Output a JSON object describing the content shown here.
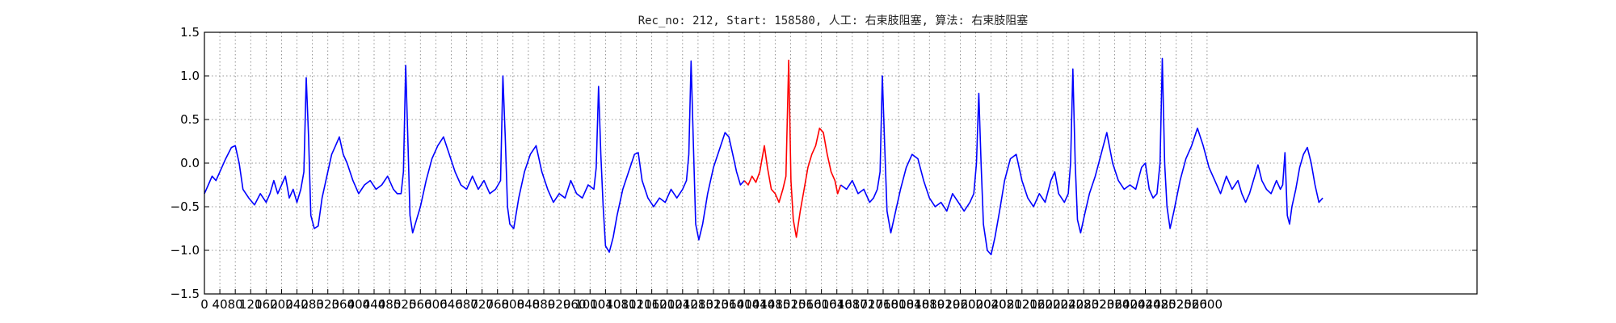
{
  "chart_data": {
    "type": "line",
    "title": "Rec_no: 212, Start: 158580, 人工: 右束肢阻塞, 算法: 右束肢阻塞",
    "xlabel": "",
    "ylabel": "",
    "xlim": [
      0,
      2900
    ],
    "ylim": [
      -1.5,
      1.5
    ],
    "grid": true,
    "y_ticks": [
      "1.5",
      "1.0",
      "0.5",
      "0.0",
      "−0.5",
      "−1.0",
      "−1.5"
    ],
    "y_tick_values": [
      1.5,
      1.0,
      0.5,
      0.0,
      -0.5,
      -1.0,
      -1.5
    ],
    "x_tick_values": [
      0,
      40,
      80,
      120,
      160,
      200,
      240,
      280,
      320,
      360,
      400,
      440,
      480,
      520,
      560,
      600,
      640,
      680,
      720,
      760,
      800,
      840,
      880,
      920,
      960,
      1000,
      1040,
      1080,
      1120,
      1160,
      1200,
      1240,
      1280,
      1320,
      1360,
      1400,
      1440,
      1480,
      1520,
      1560,
      1600,
      1640,
      1680,
      1720,
      1760,
      1800,
      1840,
      1880,
      1920,
      1960,
      2000,
      2040,
      2080,
      2120,
      2160,
      2200,
      2240,
      2280,
      2320,
      2360,
      2400,
      2440,
      2480,
      2520,
      2560,
      2600
    ],
    "x_tick_labels": [
      "0",
      "40",
      "80",
      "120",
      "160",
      "200",
      "240",
      "280",
      "320",
      "360",
      "400",
      "440",
      "480",
      "520",
      "560",
      "600",
      "640",
      "680",
      "720",
      "760",
      "800",
      "840",
      "880",
      "920",
      "960",
      "1000",
      "1040",
      "1080",
      "1120",
      "1160",
      "1200",
      "1240",
      "1280",
      "1320",
      "1360",
      "1400",
      "1440",
      "1480",
      "1520",
      "1560",
      "1600",
      "1640",
      "1680",
      "1720",
      "1760",
      "1800",
      "1840",
      "1880",
      "1920",
      "1960",
      "2000",
      "2040",
      "2080",
      "2120",
      "2160",
      "2200",
      "2240",
      "2280",
      "2320",
      "2360",
      "2400",
      "2440",
      "2480",
      "2520",
      "2560",
      "2600"
    ],
    "series": [
      {
        "color": "#0000ff",
        "points": [
          [
            0,
            -0.35
          ],
          [
            10,
            -0.25
          ],
          [
            20,
            -0.15
          ],
          [
            30,
            -0.2
          ],
          [
            40,
            -0.1
          ],
          [
            55,
            0.05
          ],
          [
            70,
            0.18
          ],
          [
            80,
            0.2
          ],
          [
            90,
            0.0
          ],
          [
            100,
            -0.3
          ],
          [
            115,
            -0.4
          ],
          [
            130,
            -0.48
          ],
          [
            145,
            -0.35
          ],
          [
            160,
            -0.45
          ],
          [
            170,
            -0.35
          ],
          [
            180,
            -0.2
          ],
          [
            190,
            -0.35
          ],
          [
            200,
            -0.25
          ],
          [
            210,
            -0.15
          ],
          [
            220,
            -0.4
          ],
          [
            230,
            -0.3
          ],
          [
            240,
            -0.45
          ],
          [
            250,
            -0.3
          ],
          [
            258,
            -0.1
          ],
          [
            264,
            0.98
          ],
          [
            270,
            0.3
          ],
          [
            276,
            -0.6
          ],
          [
            285,
            -0.75
          ],
          [
            295,
            -0.72
          ],
          [
            305,
            -0.4
          ],
          [
            320,
            -0.1
          ],
          [
            330,
            0.1
          ],
          [
            340,
            0.2
          ],
          [
            350,
            0.3
          ],
          [
            360,
            0.1
          ],
          [
            370,
            0.0
          ],
          [
            385,
            -0.2
          ],
          [
            400,
            -0.35
          ],
          [
            415,
            -0.25
          ],
          [
            430,
            -0.2
          ],
          [
            445,
            -0.3
          ],
          [
            460,
            -0.25
          ],
          [
            475,
            -0.15
          ],
          [
            490,
            -0.3
          ],
          [
            500,
            -0.35
          ],
          [
            510,
            -0.35
          ],
          [
            516,
            -0.1
          ],
          [
            522,
            1.12
          ],
          [
            528,
            0.2
          ],
          [
            533,
            -0.6
          ],
          [
            540,
            -0.8
          ],
          [
            550,
            -0.65
          ],
          [
            560,
            -0.5
          ],
          [
            575,
            -0.2
          ],
          [
            590,
            0.05
          ],
          [
            605,
            0.2
          ],
          [
            620,
            0.3
          ],
          [
            635,
            0.1
          ],
          [
            650,
            -0.1
          ],
          [
            665,
            -0.25
          ],
          [
            680,
            -0.3
          ],
          [
            695,
            -0.15
          ],
          [
            710,
            -0.3
          ],
          [
            725,
            -0.2
          ],
          [
            740,
            -0.35
          ],
          [
            755,
            -0.3
          ],
          [
            768,
            -0.2
          ],
          [
            774,
            1.0
          ],
          [
            780,
            0.3
          ],
          [
            786,
            -0.5
          ],
          [
            792,
            -0.7
          ],
          [
            802,
            -0.75
          ],
          [
            815,
            -0.4
          ],
          [
            830,
            -0.1
          ],
          [
            845,
            0.1
          ],
          [
            860,
            0.2
          ],
          [
            875,
            -0.1
          ],
          [
            890,
            -0.3
          ],
          [
            905,
            -0.45
          ],
          [
            920,
            -0.35
          ],
          [
            935,
            -0.4
          ],
          [
            950,
            -0.2
          ],
          [
            965,
            -0.35
          ],
          [
            980,
            -0.4
          ],
          [
            995,
            -0.25
          ],
          [
            1010,
            -0.3
          ],
          [
            1016,
            -0.05
          ],
          [
            1022,
            0.88
          ],
          [
            1028,
            0.1
          ],
          [
            1034,
            -0.5
          ],
          [
            1040,
            -0.95
          ],
          [
            1050,
            -1.02
          ],
          [
            1060,
            -0.85
          ],
          [
            1070,
            -0.6
          ],
          [
            1085,
            -0.3
          ],
          [
            1100,
            -0.1
          ],
          [
            1115,
            0.1
          ],
          [
            1125,
            0.12
          ],
          [
            1135,
            -0.2
          ],
          [
            1150,
            -0.4
          ],
          [
            1165,
            -0.5
          ],
          [
            1180,
            -0.4
          ],
          [
            1195,
            -0.45
          ],
          [
            1210,
            -0.3
          ],
          [
            1225,
            -0.4
          ],
          [
            1240,
            -0.3
          ],
          [
            1250,
            -0.2
          ],
          [
            1256,
            0.1
          ],
          [
            1262,
            1.17
          ],
          [
            1268,
            0.2
          ],
          [
            1274,
            -0.7
          ],
          [
            1282,
            -0.88
          ],
          [
            1292,
            -0.7
          ],
          [
            1305,
            -0.35
          ],
          [
            1320,
            -0.05
          ],
          [
            1335,
            0.15
          ],
          [
            1350,
            0.35
          ],
          [
            1360,
            0.3
          ],
          [
            1370,
            0.1
          ],
          [
            1380,
            -0.1
          ],
          [
            1390,
            -0.25
          ],
          [
            1400,
            -0.2
          ]
        ]
      },
      {
        "color": "#ff0000",
        "points": [
          [
            1400,
            -0.2
          ],
          [
            1410,
            -0.25
          ],
          [
            1420,
            -0.15
          ],
          [
            1430,
            -0.22
          ],
          [
            1440,
            -0.1
          ],
          [
            1452,
            0.2
          ],
          [
            1460,
            -0.05
          ],
          [
            1470,
            -0.3
          ],
          [
            1480,
            -0.35
          ],
          [
            1490,
            -0.45
          ],
          [
            1500,
            -0.3
          ],
          [
            1508,
            -0.15
          ],
          [
            1515,
            1.18
          ],
          [
            1521,
            -0.2
          ],
          [
            1527,
            -0.65
          ],
          [
            1535,
            -0.85
          ],
          [
            1545,
            -0.55
          ],
          [
            1555,
            -0.3
          ],
          [
            1565,
            -0.05
          ],
          [
            1575,
            0.1
          ],
          [
            1585,
            0.2
          ],
          [
            1595,
            0.4
          ],
          [
            1605,
            0.35
          ],
          [
            1615,
            0.1
          ],
          [
            1625,
            -0.1
          ],
          [
            1635,
            -0.2
          ],
          [
            1642,
            -0.35
          ],
          [
            1650,
            -0.25
          ]
        ]
      },
      {
        "color": "#0000ff",
        "points": [
          [
            1650,
            -0.25
          ],
          [
            1665,
            -0.3
          ],
          [
            1680,
            -0.2
          ],
          [
            1695,
            -0.35
          ],
          [
            1710,
            -0.3
          ],
          [
            1725,
            -0.45
          ],
          [
            1735,
            -0.4
          ],
          [
            1745,
            -0.3
          ],
          [
            1752,
            -0.1
          ],
          [
            1758,
            1.0
          ],
          [
            1764,
            0.2
          ],
          [
            1770,
            -0.55
          ],
          [
            1780,
            -0.8
          ],
          [
            1790,
            -0.6
          ],
          [
            1805,
            -0.3
          ],
          [
            1820,
            -0.05
          ],
          [
            1835,
            0.1
          ],
          [
            1850,
            0.05
          ],
          [
            1865,
            -0.2
          ],
          [
            1880,
            -0.4
          ],
          [
            1895,
            -0.5
          ],
          [
            1910,
            -0.45
          ],
          [
            1925,
            -0.55
          ],
          [
            1940,
            -0.35
          ],
          [
            1955,
            -0.45
          ],
          [
            1970,
            -0.55
          ],
          [
            1985,
            -0.45
          ],
          [
            1995,
            -0.35
          ],
          [
            2002,
            0.0
          ],
          [
            2008,
            0.8
          ],
          [
            2014,
            0.0
          ],
          [
            2020,
            -0.7
          ],
          [
            2030,
            -1.0
          ],
          [
            2040,
            -1.05
          ],
          [
            2050,
            -0.85
          ],
          [
            2062,
            -0.55
          ],
          [
            2075,
            -0.2
          ],
          [
            2090,
            0.05
          ],
          [
            2105,
            0.1
          ],
          [
            2120,
            -0.2
          ],
          [
            2135,
            -0.4
          ],
          [
            2150,
            -0.5
          ],
          [
            2165,
            -0.35
          ],
          [
            2180,
            -0.45
          ],
          [
            2195,
            -0.2
          ],
          [
            2205,
            -0.1
          ],
          [
            2215,
            -0.35
          ],
          [
            2230,
            -0.45
          ],
          [
            2240,
            -0.35
          ],
          [
            2246,
            0.0
          ],
          [
            2252,
            1.08
          ],
          [
            2258,
            0.0
          ],
          [
            2264,
            -0.65
          ],
          [
            2272,
            -0.8
          ],
          [
            2282,
            -0.6
          ],
          [
            2295,
            -0.35
          ],
          [
            2310,
            -0.15
          ],
          [
            2325,
            0.1
          ],
          [
            2340,
            0.35
          ],
          [
            2355,
            0.0
          ],
          [
            2370,
            -0.2
          ],
          [
            2385,
            -0.3
          ],
          [
            2400,
            -0.25
          ],
          [
            2415,
            -0.3
          ],
          [
            2430,
            -0.05
          ],
          [
            2440,
            0.0
          ],
          [
            2450,
            -0.3
          ],
          [
            2460,
            -0.4
          ],
          [
            2470,
            -0.35
          ],
          [
            2478,
            0.0
          ],
          [
            2484,
            1.2
          ],
          [
            2490,
            0.0
          ],
          [
            2496,
            -0.5
          ],
          [
            2504,
            -0.75
          ],
          [
            2514,
            -0.55
          ],
          [
            2530,
            -0.2
          ],
          [
            2545,
            0.05
          ],
          [
            2560,
            0.2
          ],
          [
            2575,
            0.4
          ],
          [
            2590,
            0.2
          ],
          [
            2605,
            -0.05
          ],
          [
            2620,
            -0.2
          ],
          [
            2635,
            -0.35
          ],
          [
            2650,
            -0.15
          ],
          [
            2665,
            -0.3
          ],
          [
            2680,
            -0.2
          ],
          [
            2690,
            -0.35
          ],
          [
            2700,
            -0.45
          ],
          [
            2710,
            -0.35
          ],
          [
            2720,
            -0.2
          ],
          [
            2732,
            -0.02
          ],
          [
            2742,
            -0.2
          ],
          [
            2754,
            -0.3
          ],
          [
            2766,
            -0.35
          ],
          [
            2780,
            -0.2
          ],
          [
            2790,
            -0.3
          ],
          [
            2796,
            -0.25
          ],
          [
            2802,
            0.12
          ],
          [
            2808,
            -0.6
          ],
          [
            2814,
            -0.7
          ],
          [
            2820,
            -0.5
          ],
          [
            2830,
            -0.3
          ],
          [
            2840,
            -0.05
          ],
          [
            2850,
            0.1
          ],
          [
            2860,
            0.18
          ],
          [
            2870,
            0.0
          ],
          [
            2880,
            -0.25
          ],
          [
            2890,
            -0.45
          ],
          [
            2900,
            -0.4
          ]
        ]
      }
    ]
  }
}
